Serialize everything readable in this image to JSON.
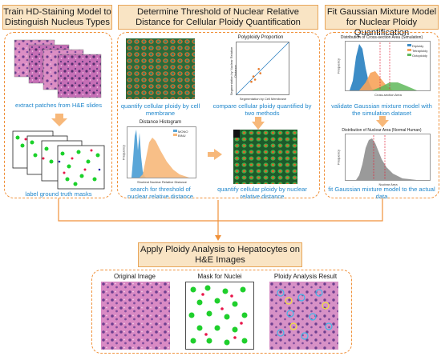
{
  "colors": {
    "orange": "#f0913a",
    "title_bg": "#f9e4c4",
    "caption": "#2288cc"
  },
  "titles": {
    "left": "Train HD-Staining Model to Distinguish Nucleus Types",
    "middle": "Determine Threshold of Nuclear Relative Distance for Cellular Ploidy Quantification",
    "right": "Fit Gaussian Mixture Model for Nuclear Ploidy Quantification",
    "bottom": "Apply Ploidy Analysis to Hepatocytes on H&E Images"
  },
  "left": {
    "cap1": "extract patches from H&E slides",
    "cap2": "label ground truth masks"
  },
  "middle": {
    "cap_membrane": "quantify cellular ploidy by cell membrane",
    "cap_compare": "compare cellular ploidy quantified by two methods",
    "cap_search": "search for threshold of nuclear relative distance",
    "cap_nuclear": "quantify cellular ploidy by nuclear relative distance",
    "scatter": {
      "title": "Polyploidy Proportion",
      "xlabel": "Segmentation by Cell Membrane",
      "ylabel": "Segmentation by Nuclear Relative Distance",
      "chart_data": {
        "type": "scatter",
        "x": [
          0.28,
          0.32,
          0.35,
          0.42,
          0.45
        ],
        "y": [
          0.24,
          0.34,
          0.28,
          0.48,
          0.4
        ]
      }
    },
    "hist": {
      "title": "Distance Histogram",
      "xlabel": "Shortest Nuclear Relative Distance",
      "ylabel": "Frequency",
      "legend": [
        "MONO",
        "BINU"
      ]
    }
  },
  "right": {
    "cap1": "validate Gaussian mixture model with the simulation dataset",
    "cap2": "fit Gaussian mixture model to the actual data",
    "chart1": {
      "title": "Distribution of Cross-section Area (Simulation)",
      "xlabel": "Cross-section Area",
      "ylabel": "Frequency",
      "legend": [
        "Diploidy",
        "Tetraploidy",
        "Octoploidy"
      ]
    },
    "chart2": {
      "title": "Distribution of Nuclear Area (Normal Human)",
      "xlabel": "Nuclear Area",
      "ylabel": "Frequency"
    }
  },
  "bottom": {
    "labels": [
      "Original Image",
      "Mask for Nuclei",
      "Ploidy Analysis Result"
    ]
  }
}
